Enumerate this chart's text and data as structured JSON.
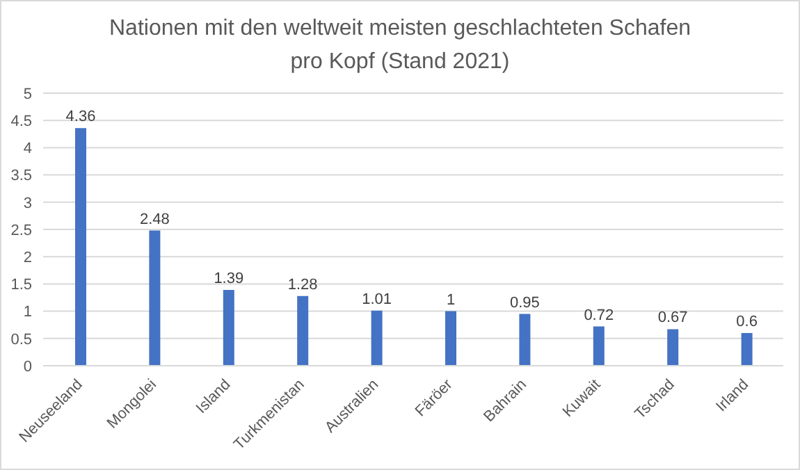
{
  "chart_data": {
    "type": "bar",
    "title": "Nationen mit den weltweit meisten geschlachteten Schafen pro Kopf (Stand 2021)",
    "categories": [
      "Neuseeland",
      "Mongolei",
      "Island",
      "Turkmenistan",
      "Australien",
      "Färöer",
      "Bahrain",
      "Kuwait",
      "Tschad",
      "Irland"
    ],
    "values": [
      4.36,
      2.48,
      1.39,
      1.28,
      1.01,
      1,
      0.95,
      0.72,
      0.67,
      0.6
    ],
    "color": "#4472c4",
    "ylim": [
      0,
      5
    ],
    "yticks": [
      0,
      0.5,
      1,
      1.5,
      2,
      2.5,
      3,
      3.5,
      4,
      4.5,
      5
    ],
    "grid": "y",
    "data_labels": true
  }
}
